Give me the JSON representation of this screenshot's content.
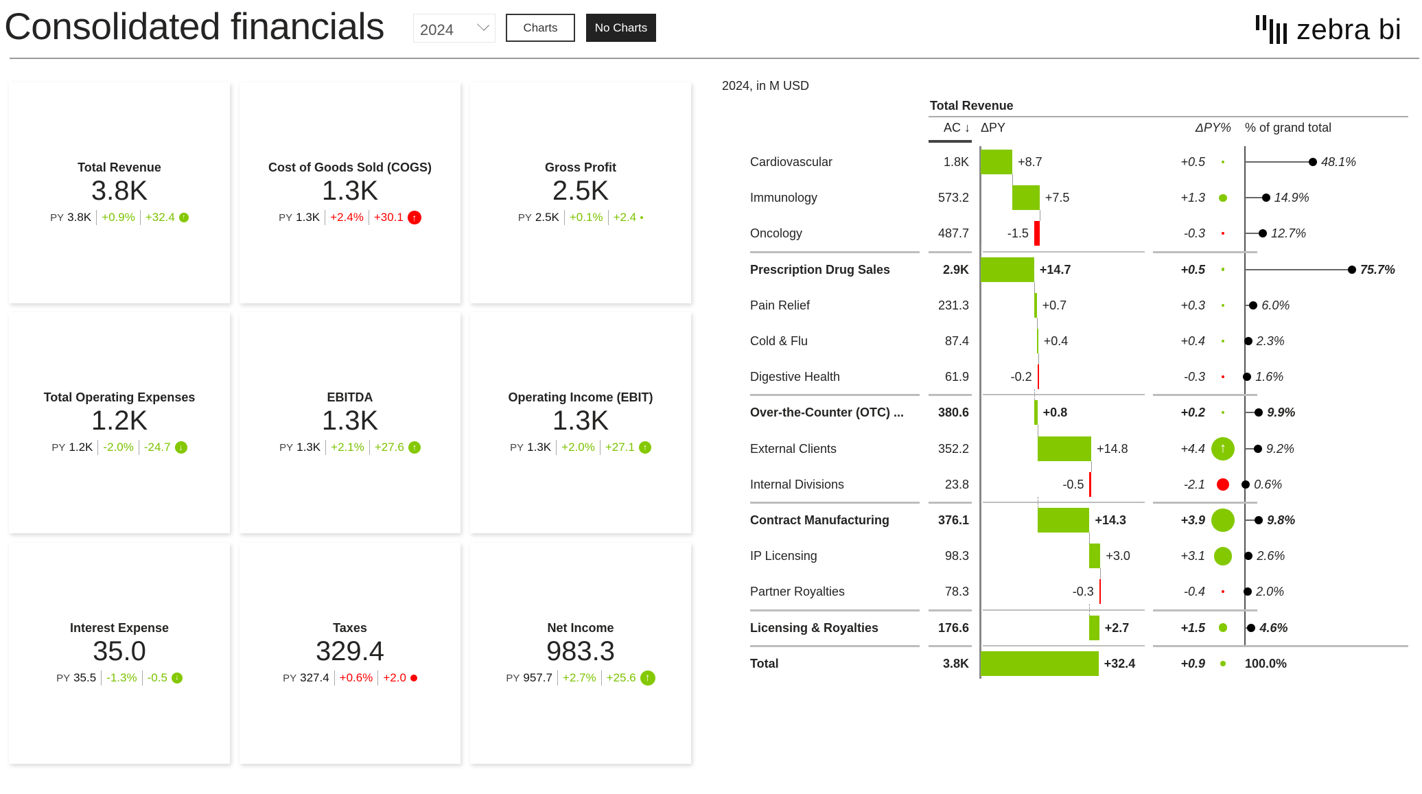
{
  "header": {
    "title": "Consolidated financials",
    "year_select": "2024",
    "charts_button": "Charts",
    "no_charts_button": "No Charts",
    "logo_text": "zebra bi"
  },
  "colors": {
    "positive": "#84C800",
    "negative": "#FF0000",
    "dark": "#222222"
  },
  "cards": [
    {
      "title": "Total Revenue",
      "value": "3.8K",
      "py_label": "PY",
      "py": "3.8K",
      "delta_pct": "+0.9%",
      "delta": "+32.4",
      "good": true,
      "icon": "arrow-up-icon"
    },
    {
      "title": "Cost of Goods Sold (COGS)",
      "value": "1.3K",
      "py_label": "PY",
      "py": "1.3K",
      "delta_pct": "+2.4%",
      "delta": "+30.1",
      "good": false,
      "icon": "arrow-up-icon"
    },
    {
      "title": "Gross Profit",
      "value": "2.5K",
      "py_label": "PY",
      "py": "2.5K",
      "delta_pct": "+0.1%",
      "delta": "+2.4",
      "good": true,
      "icon": "dot-icon"
    },
    {
      "title": "Total Operating Expenses",
      "value": "1.2K",
      "py_label": "PY",
      "py": "1.2K",
      "delta_pct": "-2.0%",
      "delta": "-24.7",
      "good": true,
      "icon": "arrow-down-icon"
    },
    {
      "title": "EBITDA",
      "value": "1.3K",
      "py_label": "PY",
      "py": "1.3K",
      "delta_pct": "+2.1%",
      "delta": "+27.6",
      "good": true,
      "icon": "arrow-up-icon"
    },
    {
      "title": "Operating Income (EBIT)",
      "value": "1.3K",
      "py_label": "PY",
      "py": "1.3K",
      "delta_pct": "+2.0%",
      "delta": "+27.1",
      "good": true,
      "icon": "arrow-up-icon"
    },
    {
      "title": "Interest Expense",
      "value": "35.0",
      "py_label": "PY",
      "py": "35.5",
      "delta_pct": "-1.3%",
      "delta": "-0.5",
      "good": true,
      "icon": "arrow-down-icon"
    },
    {
      "title": "Taxes",
      "value": "329.4",
      "py_label": "PY",
      "py": "327.4",
      "delta_pct": "+0.6%",
      "delta": "+2.0",
      "good": false,
      "icon": "dot-icon"
    },
    {
      "title": "Net Income",
      "value": "983.3",
      "py_label": "PY",
      "py": "957.7",
      "delta_pct": "+2.7%",
      "delta": "+25.6",
      "good": true,
      "icon": "arrow-up-icon"
    }
  ],
  "table": {
    "subtitle": "2024, in M USD",
    "group_header": "Total Revenue",
    "col_ac": "AC ↓",
    "col_dpy": "ΔPY",
    "col_dpy_pct": "ΔPY%",
    "col_pct_total": "% of grand total",
    "rows": [
      {
        "name": "Cardiovascular",
        "ac": "1.8K",
        "dpy": 8.7,
        "dpy_label": "+8.7",
        "dpy_pct": 0.5,
        "dpy_pct_label": "+0.5",
        "pct": 48.1,
        "pct_label": "48.1%",
        "type": "item"
      },
      {
        "name": "Immunology",
        "ac": "573.2",
        "dpy": 7.5,
        "dpy_label": "+7.5",
        "dpy_pct": 1.3,
        "dpy_pct_label": "+1.3",
        "pct": 14.9,
        "pct_label": "14.9%",
        "type": "item"
      },
      {
        "name": "Oncology",
        "ac": "487.7",
        "dpy": -1.5,
        "dpy_label": "-1.5",
        "dpy_pct": -0.3,
        "dpy_pct_label": "-0.3",
        "pct": 12.7,
        "pct_label": "12.7%",
        "type": "item"
      },
      {
        "name": "Prescription Drug Sales",
        "ac": "2.9K",
        "dpy": 14.7,
        "dpy_label": "+14.7",
        "dpy_pct": 0.5,
        "dpy_pct_label": "+0.5",
        "pct": 75.7,
        "pct_label": "75.7%",
        "type": "subtotal"
      },
      {
        "name": "Pain Relief",
        "ac": "231.3",
        "dpy": 0.7,
        "dpy_label": "+0.7",
        "dpy_pct": 0.3,
        "dpy_pct_label": "+0.3",
        "pct": 6.0,
        "pct_label": "6.0%",
        "type": "item"
      },
      {
        "name": "Cold & Flu",
        "ac": "87.4",
        "dpy": 0.4,
        "dpy_label": "+0.4",
        "dpy_pct": 0.4,
        "dpy_pct_label": "+0.4",
        "pct": 2.3,
        "pct_label": "2.3%",
        "type": "item"
      },
      {
        "name": "Digestive Health",
        "ac": "61.9",
        "dpy": -0.2,
        "dpy_label": "-0.2",
        "dpy_pct": -0.3,
        "dpy_pct_label": "-0.3",
        "pct": 1.6,
        "pct_label": "1.6%",
        "type": "item"
      },
      {
        "name": "Over-the-Counter (OTC) ...",
        "ac": "380.6",
        "dpy": 0.8,
        "dpy_label": "+0.8",
        "dpy_pct": 0.2,
        "dpy_pct_label": "+0.2",
        "pct": 9.9,
        "pct_label": "9.9%",
        "type": "subtotal"
      },
      {
        "name": "External Clients",
        "ac": "352.2",
        "dpy": 14.8,
        "dpy_label": "+14.8",
        "dpy_pct": 4.4,
        "dpy_pct_label": "+4.4",
        "pct": 9.2,
        "pct_label": "9.2%",
        "type": "item"
      },
      {
        "name": "Internal Divisions",
        "ac": "23.8",
        "dpy": -0.5,
        "dpy_label": "-0.5",
        "dpy_pct": -2.1,
        "dpy_pct_label": "-2.1",
        "pct": 0.6,
        "pct_label": "0.6%",
        "type": "item"
      },
      {
        "name": "Contract Manufacturing",
        "ac": "376.1",
        "dpy": 14.3,
        "dpy_label": "+14.3",
        "dpy_pct": 3.9,
        "dpy_pct_label": "+3.9",
        "pct": 9.8,
        "pct_label": "9.8%",
        "type": "subtotal"
      },
      {
        "name": "IP Licensing",
        "ac": "98.3",
        "dpy": 3.0,
        "dpy_label": "+3.0",
        "dpy_pct": 3.1,
        "dpy_pct_label": "+3.1",
        "pct": 2.6,
        "pct_label": "2.6%",
        "type": "item"
      },
      {
        "name": "Partner Royalties",
        "ac": "78.3",
        "dpy": -0.3,
        "dpy_label": "-0.3",
        "dpy_pct": -0.4,
        "dpy_pct_label": "-0.4",
        "pct": 2.0,
        "pct_label": "2.0%",
        "type": "item"
      },
      {
        "name": "Licensing & Royalties",
        "ac": "176.6",
        "dpy": 2.7,
        "dpy_label": "+2.7",
        "dpy_pct": 1.5,
        "dpy_pct_label": "+1.5",
        "pct": 4.6,
        "pct_label": "4.6%",
        "type": "subtotal"
      },
      {
        "name": "Total",
        "ac": "3.8K",
        "dpy": 32.4,
        "dpy_label": "+32.4",
        "dpy_pct": 0.9,
        "dpy_pct_label": "+0.9",
        "pct": 100.0,
        "pct_label": "100.0%",
        "type": "total"
      }
    ]
  }
}
